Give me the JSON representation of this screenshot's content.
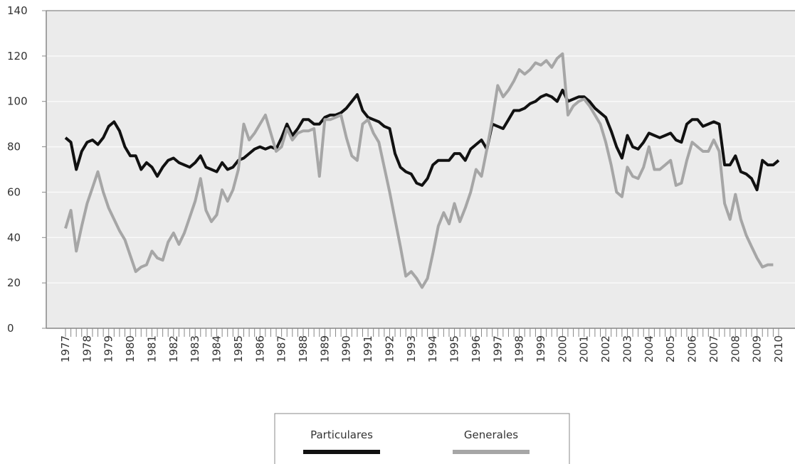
{
  "chart_data": {
    "type": "line",
    "categories": [
      "1977",
      null,
      null,
      null,
      "1978",
      null,
      null,
      null,
      "1979",
      null,
      null,
      null,
      "1980",
      null,
      null,
      null,
      "1981",
      null,
      null,
      null,
      "1982",
      null,
      null,
      null,
      "1983",
      null,
      null,
      null,
      "1984",
      null,
      null,
      null,
      "1985",
      null,
      null,
      null,
      "1986",
      null,
      null,
      null,
      "1987",
      null,
      null,
      null,
      "1988",
      null,
      null,
      null,
      "1989",
      null,
      null,
      null,
      "1990",
      null,
      null,
      null,
      "1991",
      null,
      null,
      null,
      "1992",
      null,
      null,
      null,
      "1993",
      null,
      null,
      null,
      "1994",
      null,
      null,
      null,
      "1995",
      null,
      null,
      null,
      "1996",
      null,
      null,
      null,
      "1997",
      null,
      null,
      null,
      "1998",
      null,
      null,
      null,
      "1999",
      null,
      null,
      null,
      "2000",
      null,
      null,
      null,
      "2001",
      null,
      null,
      null,
      "2002",
      null,
      null,
      null,
      "2003",
      null,
      null,
      null,
      "2004",
      null,
      null,
      null,
      "2005",
      null,
      null,
      null,
      "2006",
      null,
      null,
      null,
      "2007",
      null,
      null,
      null,
      "2008",
      null,
      null,
      null,
      "2009",
      null,
      null,
      null,
      "2010"
    ],
    "series": [
      {
        "name": "Particulares",
        "color": "#111111",
        "values": [
          84,
          82,
          70,
          78,
          82,
          83,
          81,
          84,
          89,
          91,
          87,
          80,
          76,
          76,
          70,
          73,
          71,
          67,
          71,
          74,
          75,
          73,
          72,
          71,
          73,
          76,
          71,
          70,
          69,
          73,
          70,
          71,
          74,
          75,
          77,
          79,
          80,
          79,
          80,
          79,
          84,
          90,
          85,
          88,
          92,
          92,
          90,
          90,
          93,
          94,
          94,
          95,
          97,
          100,
          103,
          96,
          93,
          92,
          91,
          89,
          88,
          77,
          71,
          69,
          68,
          64,
          63,
          66,
          72,
          74,
          74,
          74,
          77,
          77,
          74,
          79,
          81,
          83,
          79,
          90,
          89,
          88,
          92,
          96,
          96,
          97,
          99,
          100,
          102,
          103,
          102,
          100,
          105,
          100,
          101,
          102,
          102,
          100,
          97,
          95,
          93,
          87,
          80,
          75,
          85,
          80,
          79,
          82,
          86,
          85,
          84,
          85,
          86,
          83,
          82,
          90,
          92,
          92,
          89,
          90,
          91,
          90,
          72,
          72,
          76,
          69,
          68,
          66,
          61,
          74,
          72,
          72,
          74
        ]
      },
      {
        "name": "Generales",
        "color": "#a6a6a6",
        "values": [
          44,
          52,
          34,
          45,
          55,
          62,
          69,
          60,
          53,
          48,
          43,
          39,
          32,
          25,
          27,
          28,
          34,
          31,
          30,
          38,
          42,
          37,
          42,
          49,
          56,
          66,
          52,
          47,
          50,
          61,
          56,
          61,
          70,
          90,
          83,
          86,
          90,
          94,
          86,
          78,
          80,
          88,
          83,
          86,
          87,
          87,
          88,
          67,
          92,
          92,
          93,
          94,
          84,
          76,
          74,
          90,
          92,
          86,
          82,
          71,
          60,
          48,
          36,
          23,
          25,
          22,
          18,
          22,
          33,
          45,
          51,
          46,
          55,
          47,
          53,
          60,
          70,
          67,
          79,
          92,
          107,
          102,
          105,
          109,
          114,
          112,
          114,
          117,
          116,
          118,
          115,
          119,
          121,
          94,
          98,
          100,
          101,
          98,
          94,
          90,
          82,
          72,
          60,
          58,
          71,
          67,
          66,
          71,
          80,
          70,
          70,
          72,
          74,
          63,
          64,
          74,
          82,
          80,
          78,
          78,
          83,
          78,
          55,
          48,
          59,
          48,
          41,
          36,
          31,
          27,
          28,
          28,
          null
        ]
      }
    ],
    "ylim": [
      0,
      140
    ],
    "yticks": [
      0,
      20,
      40,
      60,
      80,
      100,
      120,
      140
    ],
    "grid": true
  }
}
